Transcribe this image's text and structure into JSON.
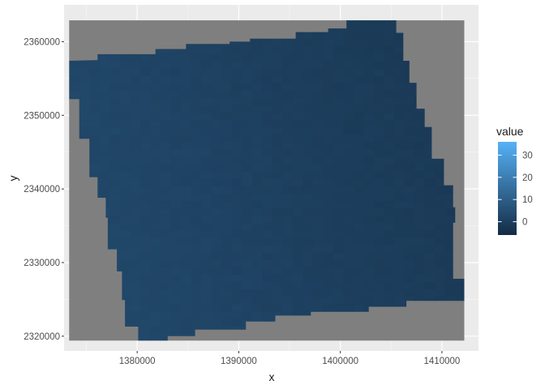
{
  "chart_data": {
    "type": "heatmap",
    "xlabel": "x",
    "ylabel": "y",
    "xlim": [
      1372800,
      1413600
    ],
    "ylim": [
      2318000,
      2365000
    ],
    "raster_extent": {
      "x": [
        1373300,
        1412200
      ],
      "y": [
        2319400,
        2362900
      ]
    },
    "x_ticks": [
      1380000,
      1390000,
      1400000,
      1410000
    ],
    "x_tick_labels": [
      "1380000",
      "1390000",
      "1400000",
      "1410000"
    ],
    "y_ticks": [
      2320000,
      2330000,
      2340000,
      2350000,
      2360000
    ],
    "y_tick_labels": [
      "2320000",
      "2330000",
      "2340000",
      "2350000",
      "2360000"
    ],
    "na_color": "#7f7f7f",
    "grid": true,
    "legend": {
      "title": "value",
      "position": "right",
      "range": [
        -6,
        36
      ],
      "breaks": [
        0,
        10,
        20,
        30
      ],
      "labels": [
        "0",
        "10",
        "20",
        "30"
      ],
      "low_color": "#132b43",
      "high_color": "#56b1f7"
    },
    "valid_region": [
      [
        1373300,
        2357400
      ],
      [
        1376100,
        2357500
      ],
      [
        1376100,
        2358300
      ],
      [
        1381800,
        2358300
      ],
      [
        1381800,
        2359000
      ],
      [
        1384800,
        2359000
      ],
      [
        1384800,
        2359700
      ],
      [
        1389100,
        2359700
      ],
      [
        1389100,
        2360000
      ],
      [
        1391100,
        2360000
      ],
      [
        1391100,
        2360400
      ],
      [
        1395600,
        2360400
      ],
      [
        1395600,
        2361300
      ],
      [
        1398800,
        2361300
      ],
      [
        1398800,
        2361800
      ],
      [
        1400600,
        2361800
      ],
      [
        1400600,
        2362900
      ],
      [
        1405500,
        2362900
      ],
      [
        1405500,
        2361200
      ],
      [
        1406200,
        2361200
      ],
      [
        1406200,
        2357400
      ],
      [
        1406800,
        2357400
      ],
      [
        1406800,
        2354400
      ],
      [
        1407500,
        2354400
      ],
      [
        1407500,
        2350900
      ],
      [
        1408300,
        2350900
      ],
      [
        1408300,
        2348400
      ],
      [
        1409000,
        2348400
      ],
      [
        1409000,
        2344100
      ],
      [
        1410200,
        2344100
      ],
      [
        1410200,
        2340500
      ],
      [
        1411100,
        2340500
      ],
      [
        1411100,
        2337500
      ],
      [
        1411300,
        2337500
      ],
      [
        1411300,
        2335400
      ],
      [
        1411100,
        2335400
      ],
      [
        1411100,
        2327800
      ],
      [
        1412200,
        2327800
      ],
      [
        1412200,
        2324800
      ],
      [
        1406500,
        2324800
      ],
      [
        1406500,
        2324000
      ],
      [
        1402800,
        2324000
      ],
      [
        1402800,
        2323300
      ],
      [
        1397100,
        2323300
      ],
      [
        1397100,
        2322800
      ],
      [
        1393600,
        2322800
      ],
      [
        1393600,
        2322000
      ],
      [
        1390700,
        2322000
      ],
      [
        1390700,
        2320900
      ],
      [
        1385700,
        2320900
      ],
      [
        1385700,
        2320000
      ],
      [
        1383000,
        2320000
      ],
      [
        1383000,
        2319400
      ],
      [
        1380100,
        2319400
      ],
      [
        1380100,
        2321300
      ],
      [
        1378800,
        2321300
      ],
      [
        1378800,
        2324900
      ],
      [
        1378500,
        2324900
      ],
      [
        1378500,
        2328800
      ],
      [
        1378000,
        2328800
      ],
      [
        1378000,
        2331800
      ],
      [
        1377100,
        2331800
      ],
      [
        1377100,
        2336100
      ],
      [
        1376900,
        2336100
      ],
      [
        1376900,
        2338800
      ],
      [
        1376100,
        2338800
      ],
      [
        1376100,
        2341600
      ],
      [
        1375300,
        2341600
      ],
      [
        1375300,
        2346800
      ],
      [
        1374300,
        2346800
      ],
      [
        1374300,
        2352200
      ],
      [
        1373300,
        2352200
      ]
    ]
  }
}
